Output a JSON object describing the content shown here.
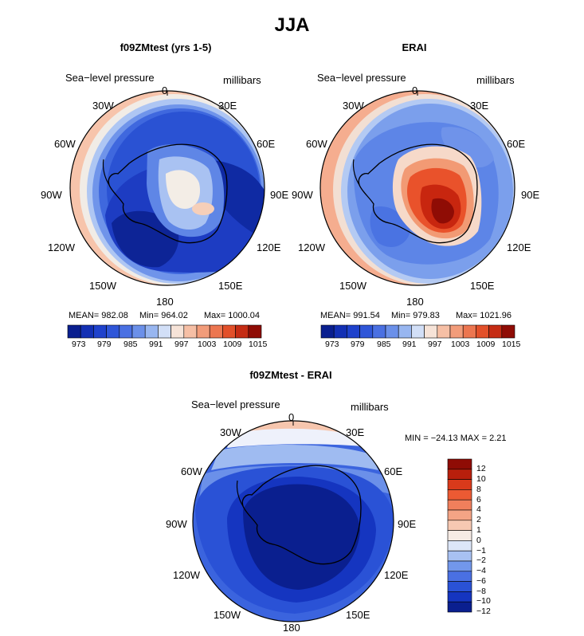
{
  "figure_title": "JJA",
  "colors": {
    "deep_blue": "#0a1f8f",
    "mid_blue": "#2b53d9",
    "light_blue": "#8fb0f0",
    "near_white": "#f4f0ea",
    "salmon": "#f5b79b",
    "red": "#e2401f",
    "dark_red": "#9c1008"
  },
  "panels": [
    {
      "title": "f09ZMtest (yrs 1-5)",
      "field_label": "Sea−level pressure",
      "units": "millibars",
      "stats": {
        "mean": "MEAN= 982.08",
        "min": "Min= 964.02",
        "max": "Max= 1000.04"
      },
      "colorbar_ticks": [
        "973",
        "979",
        "985",
        "991",
        "997",
        "1003",
        "1009",
        "1015"
      ]
    },
    {
      "title": "ERAI",
      "field_label": "Sea−level pressure",
      "units": "millibars",
      "stats": {
        "mean": "MEAN= 991.54",
        "min": "Min= 979.83",
        "max": "Max= 1021.96"
      },
      "colorbar_ticks": [
        "973",
        "979",
        "985",
        "991",
        "997",
        "1003",
        "1009",
        "1015"
      ]
    },
    {
      "title": "f09ZMtest - ERAI",
      "field_label": "Sea−level pressure",
      "units": "millibars",
      "minmax": "MIN = −24.13  MAX =    2.21",
      "colorbar_ticks": [
        "12",
        "10",
        "8",
        "6",
        "4",
        "2",
        "1",
        "0",
        "−1",
        "−2",
        "−4",
        "−6",
        "−8",
        "−10",
        "−12"
      ]
    }
  ],
  "longitude_labels": {
    "top": "0",
    "bottom": "180",
    "upper_left": "30W",
    "upper_right": "30E",
    "left_upper": "60W",
    "right_upper": "60E",
    "left": "90W",
    "right": "90E",
    "left_lower": "120W",
    "right_lower": "120E",
    "lower_left": "150W",
    "lower_right": "150E"
  }
}
